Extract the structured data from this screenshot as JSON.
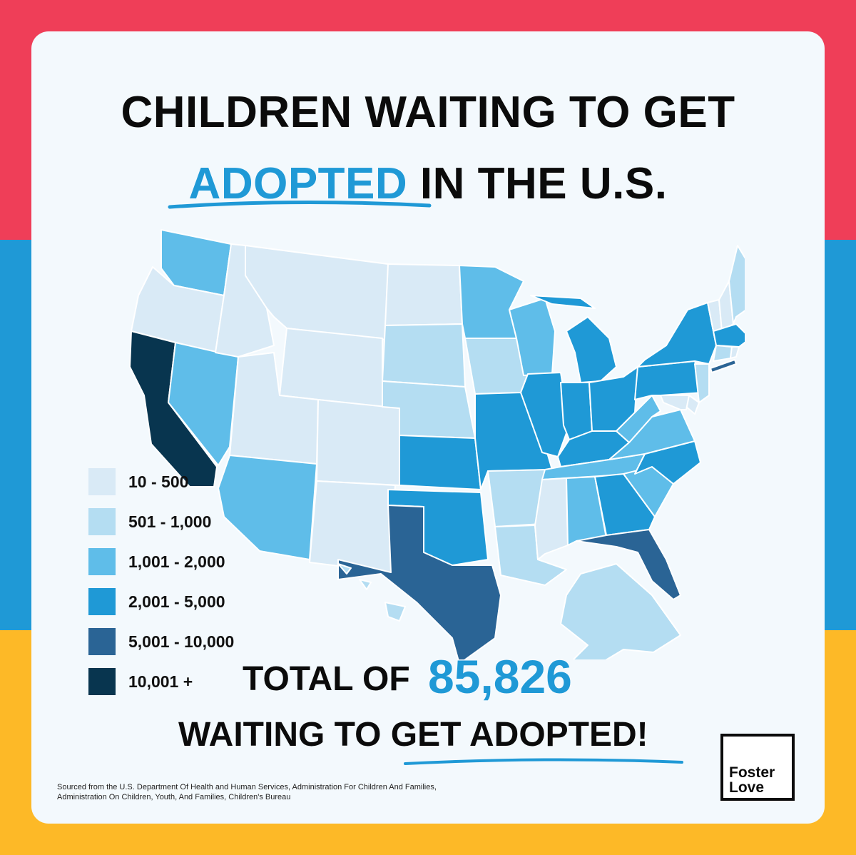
{
  "title": {
    "line1": "CHILDREN WAITING TO GET",
    "highlight": "ADOPTED",
    "line2_rest": "IN THE U.S."
  },
  "colors": {
    "stripe_red": "#ef3e58",
    "stripe_blue": "#1f99d6",
    "stripe_yellow": "#fdb927",
    "card": "#f3f9fd",
    "accent": "#1f99d6"
  },
  "legend": [
    {
      "label": "10 - 500",
      "color": "#d9eaf6"
    },
    {
      "label": "501 - 1,000",
      "color": "#b4ddf2"
    },
    {
      "label": "1,001 - 2,000",
      "color": "#5fbde9"
    },
    {
      "label": "2,001 - 5,000",
      "color": "#1f99d6"
    },
    {
      "label": "5,001 - 10,000",
      "color": "#2a6495"
    },
    {
      "label": "10,001 +",
      "color": "#08354f"
    }
  ],
  "regions": [
    {
      "name": "Washington",
      "class": "1,001 - 2,000"
    },
    {
      "name": "Oregon",
      "class": "10 - 500"
    },
    {
      "name": "California",
      "class": "10,001 +"
    },
    {
      "name": "Nevada",
      "class": "1,001 - 2,000"
    },
    {
      "name": "Idaho",
      "class": "10 - 500"
    },
    {
      "name": "Montana",
      "class": "10 - 500"
    },
    {
      "name": "Wyoming",
      "class": "10 - 500"
    },
    {
      "name": "Utah",
      "class": "10 - 500"
    },
    {
      "name": "Arizona",
      "class": "1,001 - 2,000"
    },
    {
      "name": "Colorado",
      "class": "10 - 500"
    },
    {
      "name": "New Mexico",
      "class": "10 - 500"
    },
    {
      "name": "North Dakota",
      "class": "10 - 500"
    },
    {
      "name": "South Dakota",
      "class": "501 - 1,000"
    },
    {
      "name": "Nebraska",
      "class": "501 - 1,000"
    },
    {
      "name": "Kansas",
      "class": "2,001 - 5,000"
    },
    {
      "name": "Oklahoma",
      "class": "2,001 - 5,000"
    },
    {
      "name": "Texas",
      "class": "5,001 - 10,000"
    },
    {
      "name": "Minnesota",
      "class": "1,001 - 2,000"
    },
    {
      "name": "Iowa",
      "class": "501 - 1,000"
    },
    {
      "name": "Missouri",
      "class": "2,001 - 5,000"
    },
    {
      "name": "Arkansas",
      "class": "501 - 1,000"
    },
    {
      "name": "Louisiana",
      "class": "501 - 1,000"
    },
    {
      "name": "Wisconsin",
      "class": "1,001 - 2,000"
    },
    {
      "name": "Illinois",
      "class": "2,001 - 5,000"
    },
    {
      "name": "Michigan",
      "class": "2,001 - 5,000"
    },
    {
      "name": "Indiana",
      "class": "2,001 - 5,000"
    },
    {
      "name": "Ohio",
      "class": "2,001 - 5,000"
    },
    {
      "name": "Kentucky",
      "class": "2,001 - 5,000"
    },
    {
      "name": "Tennessee",
      "class": "1,001 - 2,000"
    },
    {
      "name": "Mississippi",
      "class": "10 - 500"
    },
    {
      "name": "Alabama",
      "class": "1,001 - 2,000"
    },
    {
      "name": "Georgia",
      "class": "2,001 - 5,000"
    },
    {
      "name": "Florida",
      "class": "5,001 - 10,000"
    },
    {
      "name": "South Carolina",
      "class": "1,001 - 2,000"
    },
    {
      "name": "North Carolina",
      "class": "2,001 - 5,000"
    },
    {
      "name": "Virginia",
      "class": "1,001 - 2,000"
    },
    {
      "name": "West Virginia",
      "class": "1,001 - 2,000"
    },
    {
      "name": "Pennsylvania",
      "class": "2,001 - 5,000"
    },
    {
      "name": "New York",
      "class": "2,001 - 5,000"
    },
    {
      "name": "Maine",
      "class": "501 - 1,000"
    },
    {
      "name": "Vermont",
      "class": "10 - 500"
    },
    {
      "name": "New Hampshire",
      "class": "10 - 500"
    },
    {
      "name": "Massachusetts",
      "class": "2,001 - 5,000"
    },
    {
      "name": "Connecticut",
      "class": "501 - 1,000"
    },
    {
      "name": "Rhode Island",
      "class": "10 - 500"
    },
    {
      "name": "New Jersey",
      "class": "501 - 1,000"
    },
    {
      "name": "Delaware",
      "class": "10 - 500"
    },
    {
      "name": "Maryland",
      "class": "10 - 500"
    },
    {
      "name": "Long Island",
      "class": "5,001 - 10,000"
    },
    {
      "name": "Alaska",
      "class": "501 - 1,000"
    },
    {
      "name": "Hawaii",
      "class": "501 - 1,000"
    }
  ],
  "total": {
    "prefix": "TOTAL OF",
    "number": "85,826",
    "line2": "WAITING TO GET ADOPTED!"
  },
  "source": "Sourced from the U.S. Department Of Health and Human Services, Administration For Children And Families, Administration On Children, Youth, And Families, Children's Bureau",
  "logo": {
    "line1": "Foster",
    "line2": "Love"
  }
}
